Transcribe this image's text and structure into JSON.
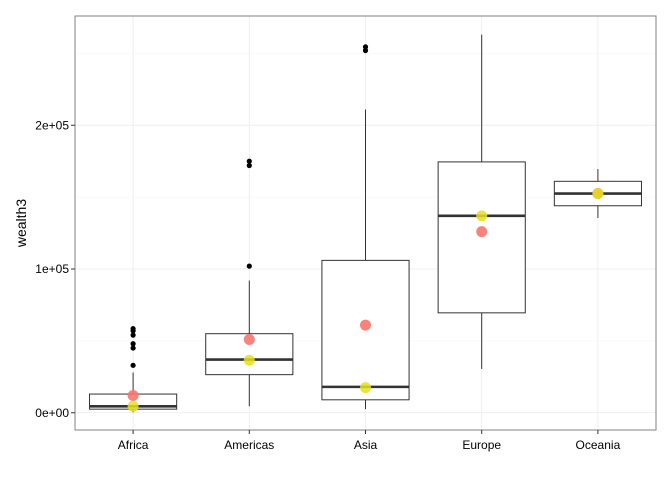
{
  "chart_data": {
    "type": "boxplot",
    "title": "",
    "xlabel": "",
    "ylabel": "wealth3",
    "categories": [
      "Africa",
      "Americas",
      "Asia",
      "Europe",
      "Oceania"
    ],
    "ylim": [
      -12000,
      276000
    ],
    "y_ticks": [
      0,
      100000,
      200000
    ],
    "y_tick_labels": [
      "0e+00",
      "1e+05",
      "2e+05"
    ],
    "grid": true,
    "boxes": [
      {
        "category": "Africa",
        "whisker_low": 300,
        "q1": 2500,
        "median": 4500,
        "q3": 13000,
        "whisker_high": 28000,
        "outliers": [
          33000,
          45000,
          48000,
          54000,
          57000,
          58500
        ]
      },
      {
        "category": "Americas",
        "whisker_low": 4500,
        "q1": 26500,
        "median": 37000,
        "q3": 55000,
        "whisker_high": 92000,
        "outliers": [
          102000,
          172000,
          175000
        ]
      },
      {
        "category": "Asia",
        "whisker_low": 2500,
        "q1": 9000,
        "median": 18000,
        "q3": 106000,
        "whisker_high": 211000,
        "outliers": [
          252000,
          254500
        ]
      },
      {
        "category": "Europe",
        "whisker_low": 30500,
        "q1": 69500,
        "median": 137000,
        "q3": 174500,
        "whisker_high": 263000,
        "outliers": []
      },
      {
        "category": "Oceania",
        "whisker_low": 135500,
        "q1": 144000,
        "median": 152500,
        "q3": 161000,
        "whisker_high": 169500,
        "outliers": []
      }
    ],
    "points": {
      "mean": {
        "color": "#f8766d",
        "values": [
          12000,
          51000,
          61000,
          126000,
          152500
        ]
      },
      "median": {
        "color": "#e5e01e",
        "values": [
          4500,
          36500,
          17500,
          137000,
          152500
        ]
      }
    },
    "colors": {
      "box_stroke": "#333333",
      "outlier": "#000000",
      "panel_border": "#808080",
      "grid": "#ebebeb"
    }
  }
}
